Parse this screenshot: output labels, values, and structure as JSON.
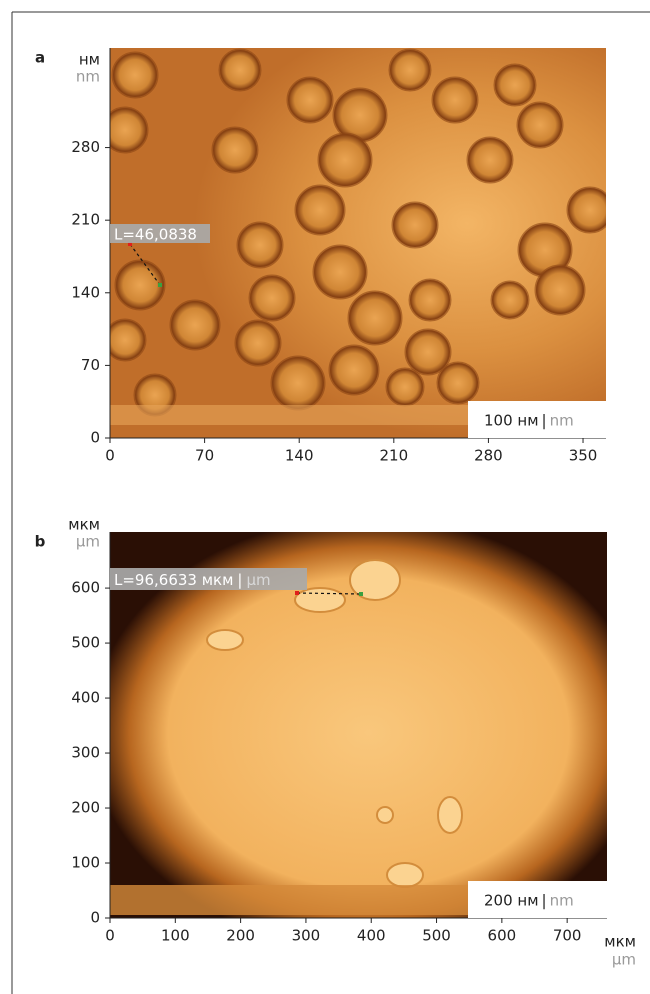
{
  "chart_data": [
    {
      "type": "image",
      "panel_label": "a",
      "y_unit": "нм",
      "y_unit_en": "nm",
      "xlim": [
        0,
        367
      ],
      "xticks": [
        0,
        70,
        140,
        210,
        280,
        350
      ],
      "ylim": [
        0,
        376
      ],
      "yticks": [
        0,
        70,
        140,
        210,
        280
      ],
      "measurement": {
        "label": "L=46,0838"
      },
      "scale_bar": {
        "label": "100 нм",
        "separator": "|",
        "label_en": "nm"
      }
    },
    {
      "type": "image",
      "panel_label": "b",
      "y_unit": "мкм",
      "y_unit_en": "µm",
      "x_unit": "мкм",
      "x_unit_en": "µm",
      "xlim": [
        0,
        761
      ],
      "xticks": [
        0,
        100,
        200,
        300,
        400,
        500,
        600,
        700
      ],
      "ylim": [
        0,
        702
      ],
      "yticks": [
        0,
        100,
        200,
        300,
        400,
        500,
        600
      ],
      "measurement": {
        "label": "L=96,6633 мкм",
        "separator": "|",
        "label_en": "µm"
      },
      "scale_bar": {
        "label": "200 нм",
        "separator": "|",
        "label_en": "nm"
      }
    }
  ]
}
